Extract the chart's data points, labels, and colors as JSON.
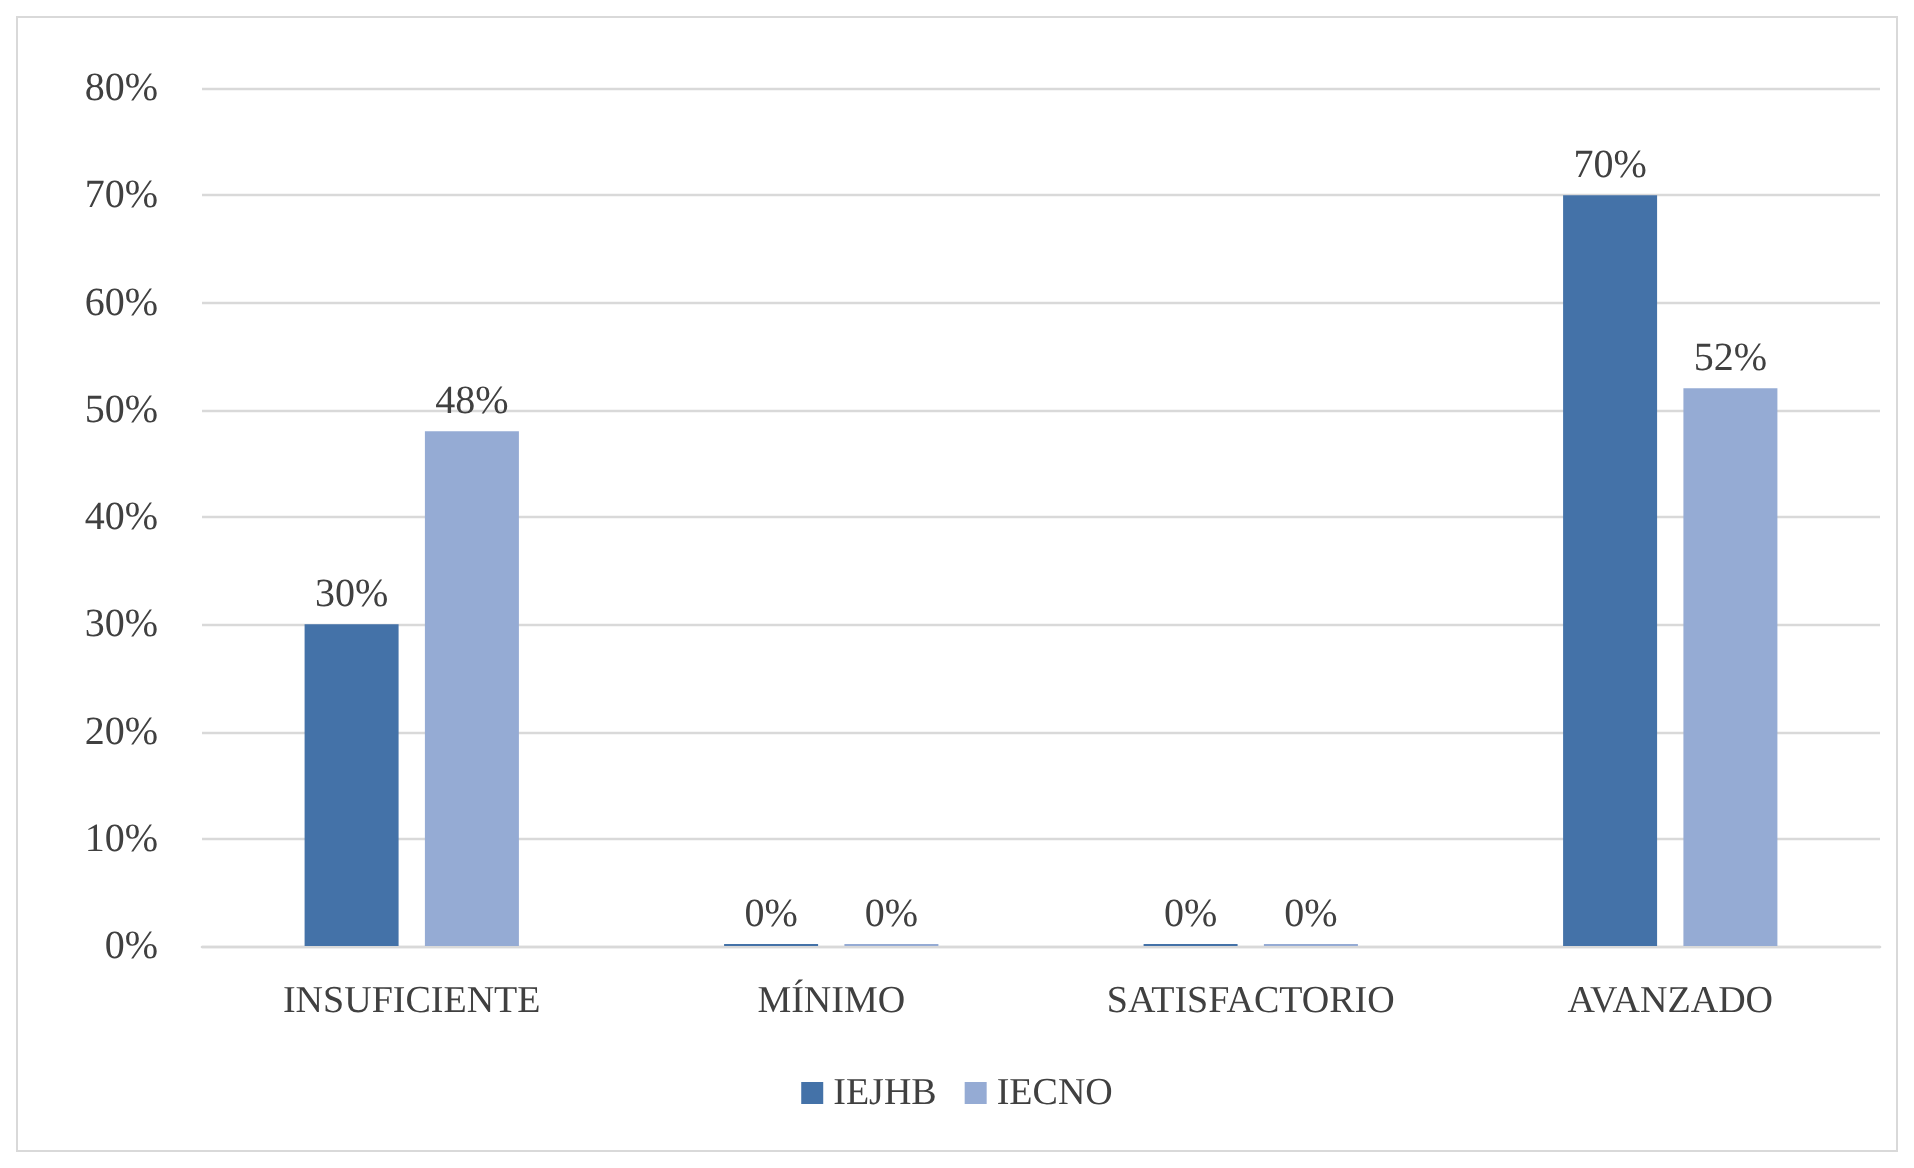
{
  "chart_data": {
    "type": "bar",
    "categories": [
      "INSUFICIENTE",
      "MÍNIMO",
      "SATISFACTORIO",
      "AVANZADO"
    ],
    "series": [
      {
        "name": "IEJHB",
        "color": "#4472a8",
        "values": [
          30,
          0,
          0,
          70
        ],
        "value_labels": [
          "30%",
          "0%",
          "0%",
          "70%"
        ]
      },
      {
        "name": "IECNO",
        "color": "#95abd4",
        "values": [
          48,
          0,
          0,
          52
        ],
        "value_labels": [
          "48%",
          "0%",
          "0%",
          "52%"
        ]
      }
    ],
    "ylim": [
      0,
      80
    ],
    "yticks": [
      {
        "value": 0,
        "label": "0%"
      },
      {
        "value": 10,
        "label": "10%"
      },
      {
        "value": 20,
        "label": "20%"
      },
      {
        "value": 30,
        "label": "30%"
      },
      {
        "value": 40,
        "label": "40%"
      },
      {
        "value": 50,
        "label": "50%"
      },
      {
        "value": 60,
        "label": "60%"
      },
      {
        "value": 70,
        "label": "70%"
      },
      {
        "value": 80,
        "label": "80%"
      }
    ],
    "grid": "y",
    "legend": "bottom"
  }
}
